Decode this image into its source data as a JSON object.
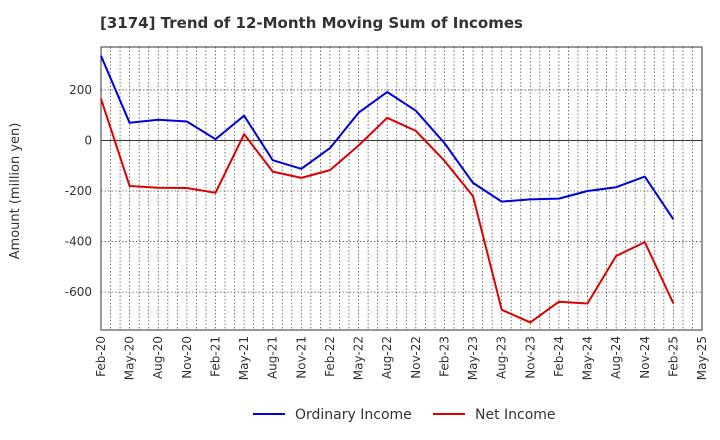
{
  "chart_data": {
    "type": "line",
    "title": "[3174]  Trend of 12-Month Moving Sum of Incomes",
    "xlabel": "",
    "ylabel": "Amount (million yen)",
    "ylim": [
      -750,
      370
    ],
    "yticks": [
      200,
      0,
      -200,
      -400,
      -600
    ],
    "x_tick_labels": [
      "Feb-20",
      "May-20",
      "Aug-20",
      "Nov-20",
      "Feb-21",
      "May-21",
      "Aug-21",
      "Nov-21",
      "Feb-22",
      "May-22",
      "Aug-22",
      "Nov-22",
      "Feb-23",
      "May-23",
      "Aug-23",
      "Nov-23",
      "Feb-24",
      "May-24",
      "Aug-24",
      "Nov-24",
      "Feb-25",
      "May-25"
    ],
    "grid": true,
    "legend_position": "bottom",
    "series": [
      {
        "name": "Ordinary Income",
        "color": "#0000dd",
        "values": [
          335,
          70,
          82,
          75,
          5,
          98,
          -78,
          -112,
          -30,
          110,
          192,
          118,
          -10,
          -168,
          -242,
          -233,
          -230,
          -200,
          -185,
          -143,
          -312
        ]
      },
      {
        "name": "Net Income",
        "color": "#dd0000",
        "values": [
          165,
          -180,
          -187,
          -188,
          -207,
          25,
          -123,
          -148,
          -117,
          -20,
          90,
          38,
          -80,
          -220,
          -670,
          -720,
          -638,
          -645,
          -457,
          -402,
          -645
        ]
      }
    ]
  }
}
